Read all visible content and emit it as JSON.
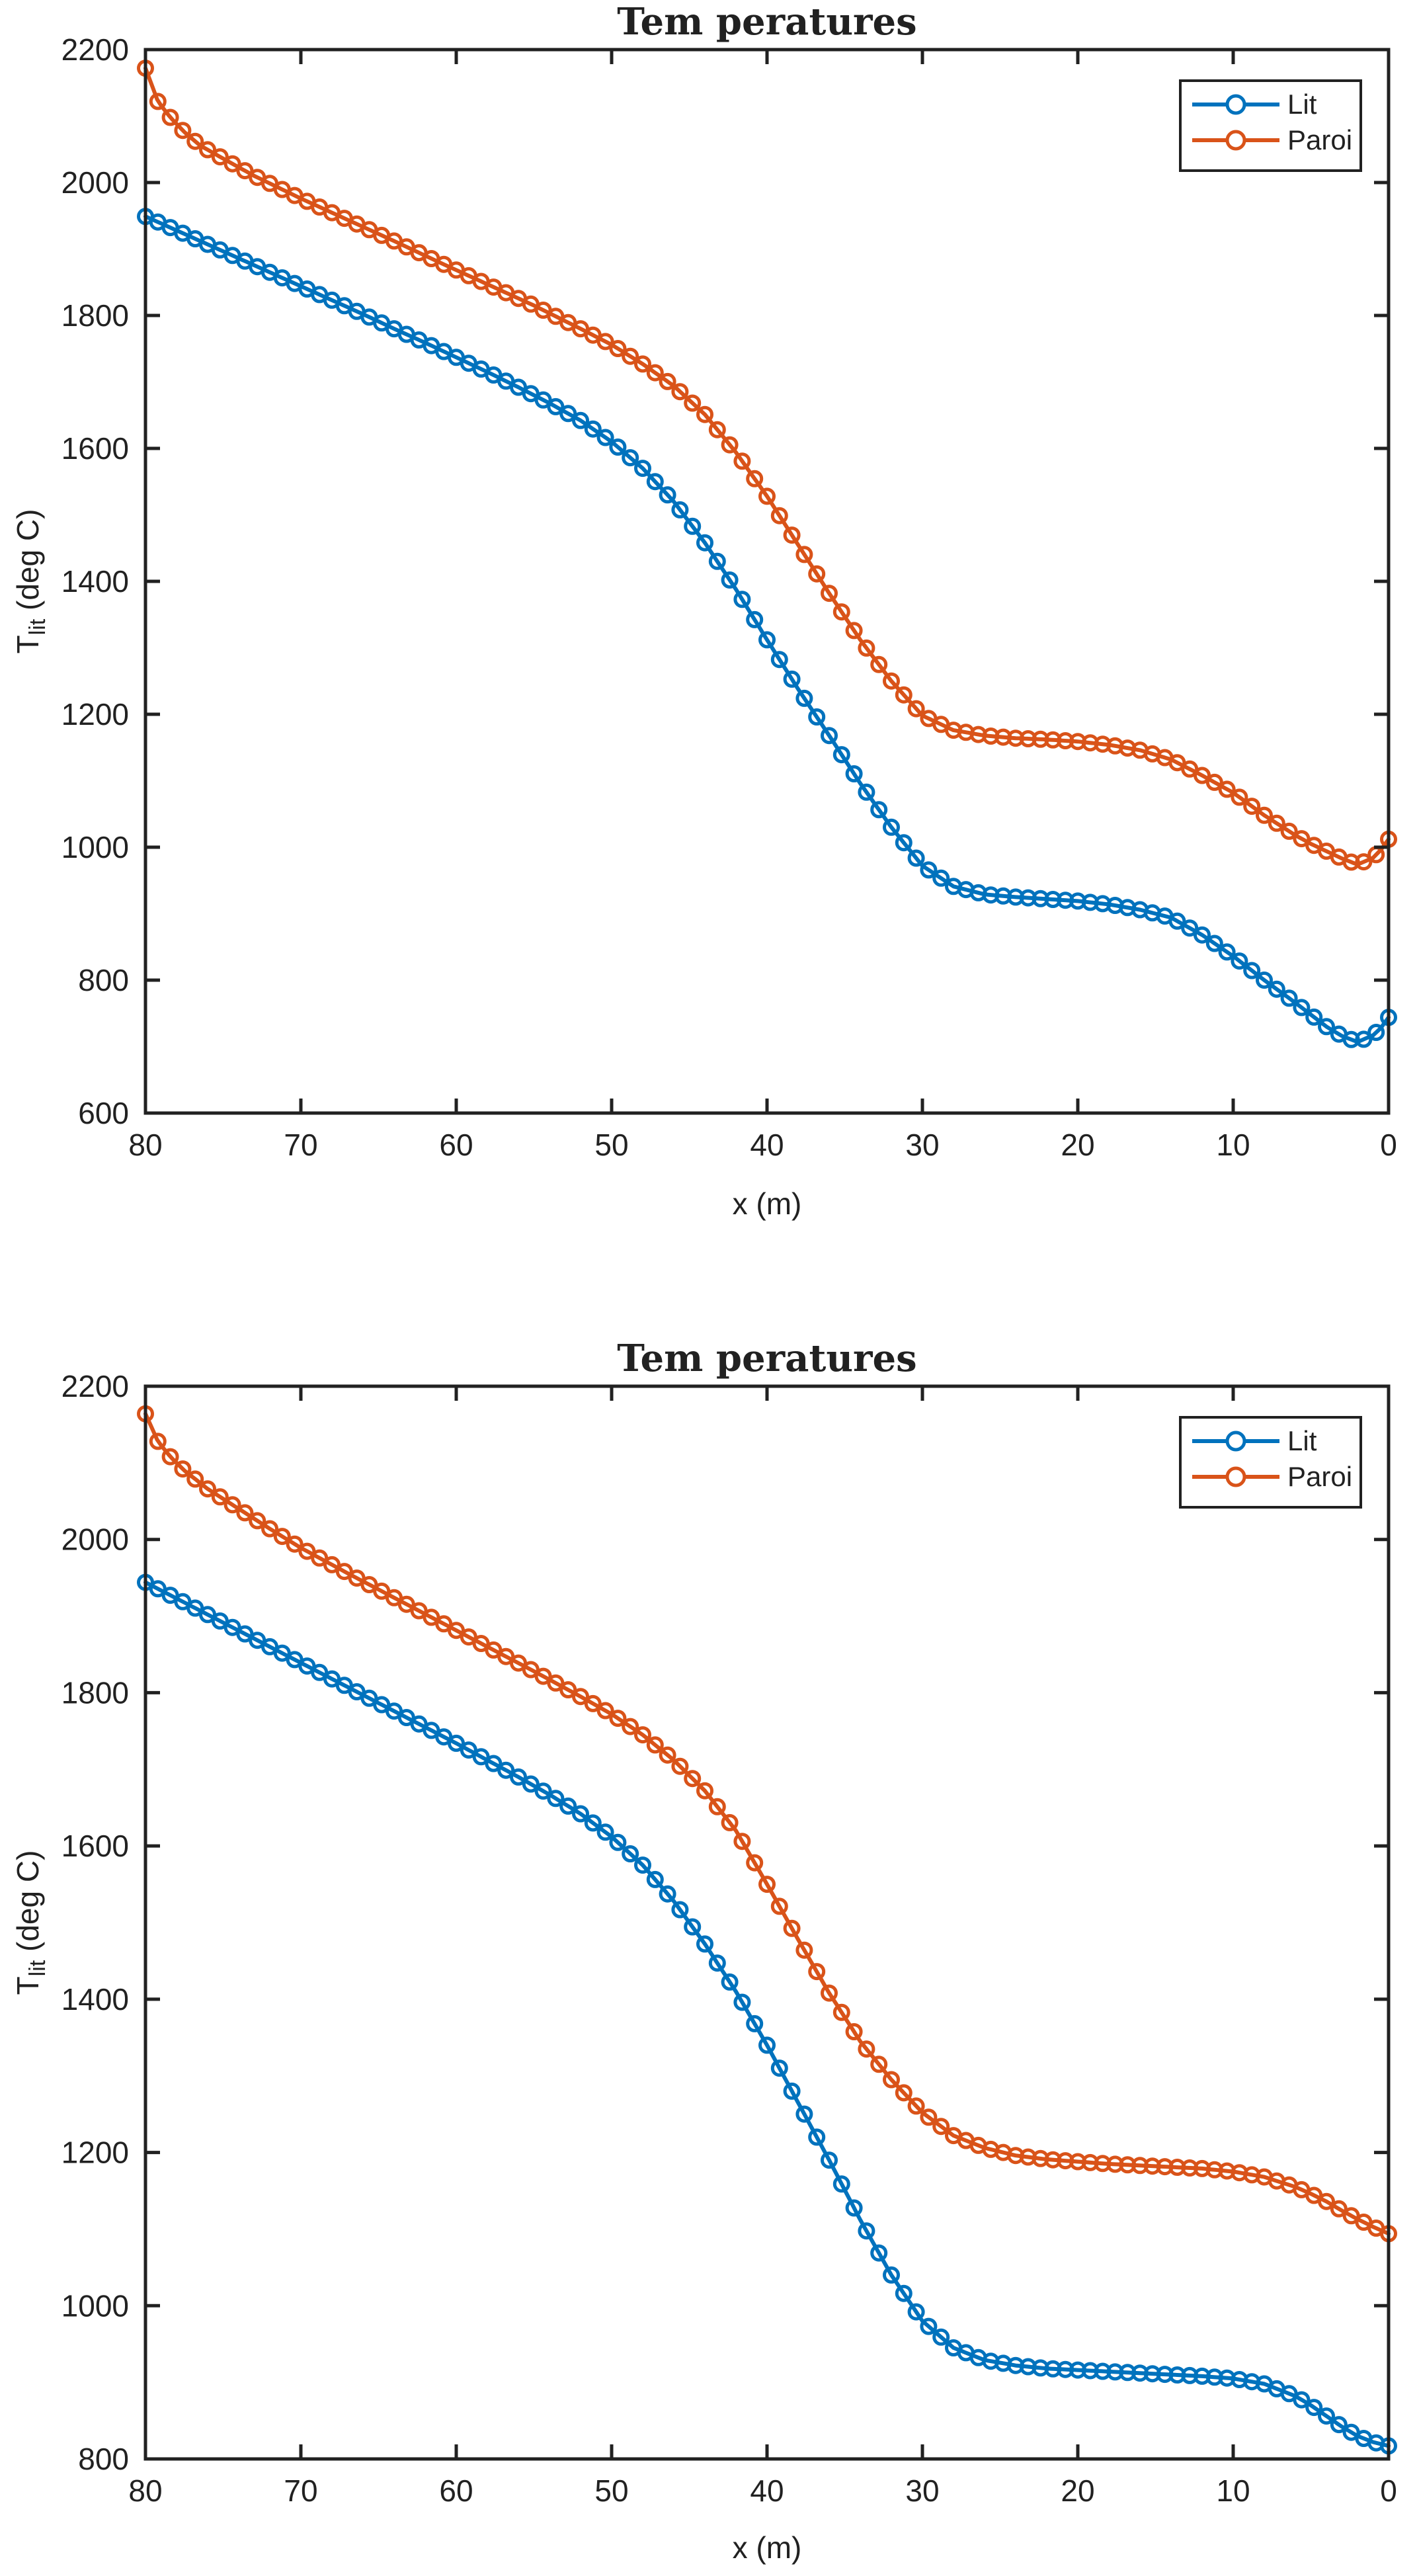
{
  "page": {
    "background": "#ffffff",
    "axis_color": "#212121"
  },
  "chart_data": [
    {
      "id": "top",
      "type": "line",
      "title": "Tem peratures",
      "xlabel": "x (m)",
      "ylabel": {
        "main": "T",
        "sub": "lit",
        "rest": " (deg C)"
      },
      "x_axis": {
        "min": 0,
        "max": 80,
        "reversed": true,
        "ticks": [
          80,
          70,
          60,
          50,
          40,
          30,
          20,
          10,
          0
        ]
      },
      "y_axis": {
        "min": 600,
        "max": 2200,
        "ticks": [
          2200,
          2000,
          1800,
          1600,
          1400,
          1200,
          1000,
          800,
          600
        ]
      },
      "legend": {
        "position": "northeast",
        "entries": [
          "Lit",
          "Paroi"
        ]
      },
      "marker_step_m": 0.8,
      "series": [
        {
          "name": "Lit",
          "color": "#0072BD",
          "marker": "o",
          "points": [
            [
              80,
              1949
            ],
            [
              78,
              1928
            ],
            [
              76,
              1907
            ],
            [
              74,
              1886
            ],
            [
              72,
              1865
            ],
            [
              70,
              1844
            ],
            [
              68,
              1823
            ],
            [
              66,
              1802
            ],
            [
              64,
              1780
            ],
            [
              62,
              1759
            ],
            [
              60,
              1737
            ],
            [
              58,
              1715
            ],
            [
              56,
              1692
            ],
            [
              54,
              1668
            ],
            [
              52,
              1642
            ],
            [
              50,
              1610
            ],
            [
              48,
              1570
            ],
            [
              46,
              1520
            ],
            [
              44,
              1458
            ],
            [
              42,
              1388
            ],
            [
              40,
              1312
            ],
            [
              38,
              1238
            ],
            [
              36,
              1168
            ],
            [
              34,
              1096
            ],
            [
              32,
              1030
            ],
            [
              30,
              972
            ],
            [
              28,
              941
            ],
            [
              26,
              929
            ],
            [
              24,
              925
            ],
            [
              22,
              922
            ],
            [
              20,
              919
            ],
            [
              18,
              914
            ],
            [
              16,
              906
            ],
            [
              14,
              894
            ],
            [
              12,
              868
            ],
            [
              10,
              836
            ],
            [
              8,
              800
            ],
            [
              6,
              766
            ],
            [
              5,
              748
            ],
            [
              4,
              730
            ],
            [
              3,
              716
            ],
            [
              2,
              707
            ],
            [
              1,
              717
            ],
            [
              0.5,
              728
            ],
            [
              0,
              744
            ]
          ]
        },
        {
          "name": "Paroi",
          "color": "#D95319",
          "marker": "o",
          "points": [
            [
              80,
              2172
            ],
            [
              79.2,
              2122
            ],
            [
              78.4,
              2098
            ],
            [
              77.5,
              2076
            ],
            [
              76.5,
              2056
            ],
            [
              75,
              2036
            ],
            [
              73,
              2010
            ],
            [
              70,
              1976
            ],
            [
              67,
              1944
            ],
            [
              64,
              1912
            ],
            [
              61,
              1879
            ],
            [
              58,
              1847
            ],
            [
              55,
              1815
            ],
            [
              52,
              1780
            ],
            [
              50,
              1756
            ],
            [
              48,
              1727
            ],
            [
              46,
              1694
            ],
            [
              44,
              1651
            ],
            [
              42,
              1594
            ],
            [
              40,
              1528
            ],
            [
              38,
              1455
            ],
            [
              36,
              1382
            ],
            [
              34,
              1312
            ],
            [
              32,
              1250
            ],
            [
              30,
              1198
            ],
            [
              28,
              1176
            ],
            [
              26,
              1168
            ],
            [
              24,
              1164
            ],
            [
              22,
              1162
            ],
            [
              20,
              1159
            ],
            [
              18,
              1154
            ],
            [
              16,
              1146
            ],
            [
              14,
              1132
            ],
            [
              12,
              1108
            ],
            [
              10,
              1082
            ],
            [
              8,
              1048
            ],
            [
              6,
              1018
            ],
            [
              5,
              1005
            ],
            [
              4,
              994
            ],
            [
              3,
              983
            ],
            [
              2,
              974
            ],
            [
              1,
              984
            ],
            [
              0.5,
              996
            ],
            [
              0,
              1012
            ]
          ]
        }
      ]
    },
    {
      "id": "bottom",
      "type": "line",
      "title": "Tem peratures",
      "xlabel": "x (m)",
      "ylabel": {
        "main": "T",
        "sub": "lit",
        "rest": " (deg C)"
      },
      "x_axis": {
        "min": 0,
        "max": 80,
        "reversed": true,
        "ticks": [
          80,
          70,
          60,
          50,
          40,
          30,
          20,
          10,
          0
        ]
      },
      "y_axis": {
        "min": 800,
        "max": 2200,
        "ticks": [
          2200,
          2000,
          1800,
          1600,
          1400,
          1200,
          1000,
          800
        ]
      },
      "legend": {
        "position": "northeast",
        "entries": [
          "Lit",
          "Paroi"
        ]
      },
      "marker_step_m": 0.8,
      "series": [
        {
          "name": "Lit",
          "color": "#0072BD",
          "marker": "o",
          "points": [
            [
              80,
              1944
            ],
            [
              78,
              1923
            ],
            [
              76,
              1902
            ],
            [
              74,
              1881
            ],
            [
              72,
              1860
            ],
            [
              70,
              1839
            ],
            [
              68,
              1818
            ],
            [
              66,
              1797
            ],
            [
              64,
              1776
            ],
            [
              62,
              1755
            ],
            [
              60,
              1734
            ],
            [
              58,
              1712
            ],
            [
              56,
              1690
            ],
            [
              54,
              1667
            ],
            [
              52,
              1642
            ],
            [
              50,
              1612
            ],
            [
              48,
              1575
            ],
            [
              46,
              1528
            ],
            [
              44,
              1472
            ],
            [
              42,
              1410
            ],
            [
              40,
              1340
            ],
            [
              38,
              1265
            ],
            [
              36,
              1190
            ],
            [
              34,
              1112
            ],
            [
              32,
              1040
            ],
            [
              30,
              980
            ],
            [
              28,
              945
            ],
            [
              26,
              929
            ],
            [
              24,
              922
            ],
            [
              22,
              918
            ],
            [
              20,
              916
            ],
            [
              18,
              914
            ],
            [
              16,
              912
            ],
            [
              14,
              910
            ],
            [
              12,
              908
            ],
            [
              10,
              905
            ],
            [
              8,
              898
            ],
            [
              6,
              882
            ],
            [
              5,
              870
            ],
            [
              4,
              856
            ],
            [
              3,
              842
            ],
            [
              2,
              830
            ],
            [
              1,
              822
            ],
            [
              0,
              817
            ]
          ]
        },
        {
          "name": "Paroi",
          "color": "#D95319",
          "marker": "o",
          "points": [
            [
              80,
              2164
            ],
            [
              79.2,
              2128
            ],
            [
              78.4,
              2108
            ],
            [
              77.5,
              2090
            ],
            [
              76,
              2066
            ],
            [
              74,
              2040
            ],
            [
              72,
              2014
            ],
            [
              70,
              1989
            ],
            [
              67,
              1956
            ],
            [
              64,
              1924
            ],
            [
              61,
              1892
            ],
            [
              58,
              1860
            ],
            [
              55,
              1828
            ],
            [
              52,
              1795
            ],
            [
              50,
              1772
            ],
            [
              48,
              1745
            ],
            [
              46,
              1712
            ],
            [
              44,
              1672
            ],
            [
              42,
              1620
            ],
            [
              40,
              1550
            ],
            [
              38,
              1478
            ],
            [
              36,
              1408
            ],
            [
              34,
              1345
            ],
            [
              32,
              1295
            ],
            [
              30,
              1252
            ],
            [
              28,
              1222
            ],
            [
              26,
              1206
            ],
            [
              24,
              1196
            ],
            [
              22,
              1191
            ],
            [
              20,
              1188
            ],
            [
              18,
              1185
            ],
            [
              16,
              1183
            ],
            [
              14,
              1181
            ],
            [
              12,
              1179
            ],
            [
              10,
              1175
            ],
            [
              8,
              1168
            ],
            [
              6,
              1155
            ],
            [
              5,
              1146
            ],
            [
              4,
              1136
            ],
            [
              3,
              1124
            ],
            [
              2,
              1113
            ],
            [
              1,
              1103
            ],
            [
              0,
              1094
            ]
          ]
        }
      ]
    }
  ]
}
